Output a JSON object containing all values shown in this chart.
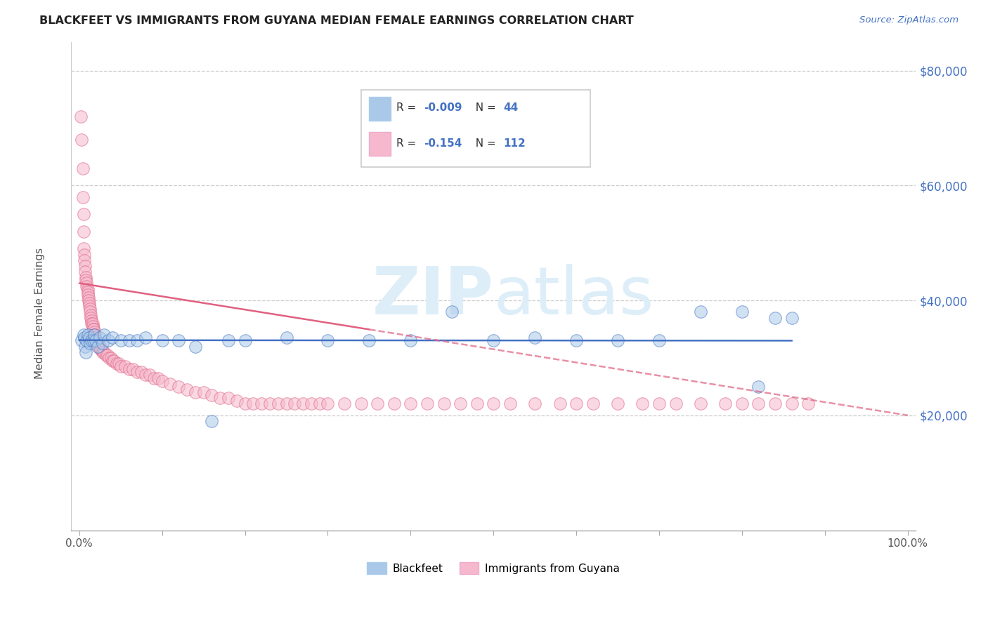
{
  "title": "BLACKFEET VS IMMIGRANTS FROM GUYANA MEDIAN FEMALE EARNINGS CORRELATION CHART",
  "source": "Source: ZipAtlas.com",
  "ylabel": "Median Female Earnings",
  "legend_label1": "Blackfeet",
  "legend_label2": "Immigrants from Guyana",
  "r1": "-0.009",
  "n1": "44",
  "r2": "-0.154",
  "n2": "112",
  "yticks": [
    20000,
    40000,
    60000,
    80000
  ],
  "ytick_labels": [
    "$20,000",
    "$40,000",
    "$60,000",
    "$80,000"
  ],
  "color_blue": "#aac9e8",
  "color_pink": "#f5b8cc",
  "line_blue": "#4472c4",
  "line_pink": "#e06080",
  "watermark_color": "#ddeef8",
  "background": "#ffffff",
  "blue_scatter_x": [
    0.003,
    0.005,
    0.006,
    0.007,
    0.008,
    0.009,
    0.01,
    0.012,
    0.013,
    0.015,
    0.017,
    0.018,
    0.02,
    0.022,
    0.025,
    0.028,
    0.03,
    0.035,
    0.04,
    0.05,
    0.06,
    0.07,
    0.08,
    0.1,
    0.12,
    0.14,
    0.16,
    0.18,
    0.2,
    0.25,
    0.3,
    0.35,
    0.4,
    0.45,
    0.5,
    0.55,
    0.6,
    0.65,
    0.7,
    0.75,
    0.8,
    0.82,
    0.84,
    0.86
  ],
  "blue_scatter_y": [
    33000,
    34000,
    33500,
    32000,
    31000,
    33000,
    34000,
    33500,
    32500,
    33000,
    33000,
    34000,
    33000,
    32000,
    33500,
    32500,
    34000,
    33000,
    33500,
    33000,
    33000,
    33000,
    33500,
    33000,
    33000,
    32000,
    19000,
    33000,
    33000,
    33500,
    33000,
    33000,
    33000,
    38000,
    33000,
    33500,
    33000,
    33000,
    33000,
    38000,
    38000,
    25000,
    37000,
    37000
  ],
  "pink_scatter_x": [
    0.002,
    0.003,
    0.004,
    0.004,
    0.005,
    0.005,
    0.005,
    0.006,
    0.006,
    0.007,
    0.007,
    0.008,
    0.008,
    0.009,
    0.009,
    0.01,
    0.01,
    0.01,
    0.011,
    0.011,
    0.012,
    0.012,
    0.013,
    0.013,
    0.014,
    0.014,
    0.015,
    0.015,
    0.016,
    0.016,
    0.017,
    0.017,
    0.018,
    0.018,
    0.019,
    0.019,
    0.02,
    0.02,
    0.021,
    0.022,
    0.023,
    0.024,
    0.025,
    0.026,
    0.027,
    0.028,
    0.03,
    0.032,
    0.034,
    0.036,
    0.038,
    0.04,
    0.042,
    0.045,
    0.048,
    0.05,
    0.055,
    0.06,
    0.065,
    0.07,
    0.075,
    0.08,
    0.085,
    0.09,
    0.095,
    0.1,
    0.11,
    0.12,
    0.13,
    0.14,
    0.15,
    0.16,
    0.17,
    0.18,
    0.19,
    0.2,
    0.21,
    0.22,
    0.23,
    0.24,
    0.25,
    0.26,
    0.27,
    0.28,
    0.29,
    0.3,
    0.32,
    0.34,
    0.36,
    0.38,
    0.4,
    0.42,
    0.44,
    0.46,
    0.48,
    0.5,
    0.52,
    0.55,
    0.58,
    0.6,
    0.62,
    0.65,
    0.68,
    0.7,
    0.72,
    0.75,
    0.78,
    0.8,
    0.82,
    0.84,
    0.86,
    0.88
  ],
  "pink_scatter_y": [
    72000,
    68000,
    63000,
    58000,
    55000,
    52000,
    49000,
    48000,
    47000,
    46000,
    45000,
    44000,
    43500,
    43000,
    42500,
    42000,
    41500,
    41000,
    40500,
    40000,
    39500,
    39000,
    38500,
    38000,
    37500,
    37000,
    36500,
    36000,
    36000,
    35500,
    35000,
    35000,
    34500,
    34000,
    34000,
    33500,
    33000,
    33000,
    32500,
    32500,
    32000,
    32000,
    32000,
    31500,
    31500,
    31000,
    31000,
    30500,
    30500,
    30000,
    30000,
    29500,
    29500,
    29000,
    29000,
    28500,
    28500,
    28000,
    28000,
    27500,
    27500,
    27000,
    27000,
    26500,
    26500,
    26000,
    25500,
    25000,
    24500,
    24000,
    24000,
    23500,
    23000,
    23000,
    22500,
    22000,
    22000,
    22000,
    22000,
    22000,
    22000,
    22000,
    22000,
    22000,
    22000,
    22000,
    22000,
    22000,
    22000,
    22000,
    22000,
    22000,
    22000,
    22000,
    22000,
    22000,
    22000,
    22000,
    22000,
    22000,
    22000,
    22000,
    22000,
    22000,
    22000,
    22000,
    22000,
    22000,
    22000,
    22000,
    22000,
    22000
  ]
}
